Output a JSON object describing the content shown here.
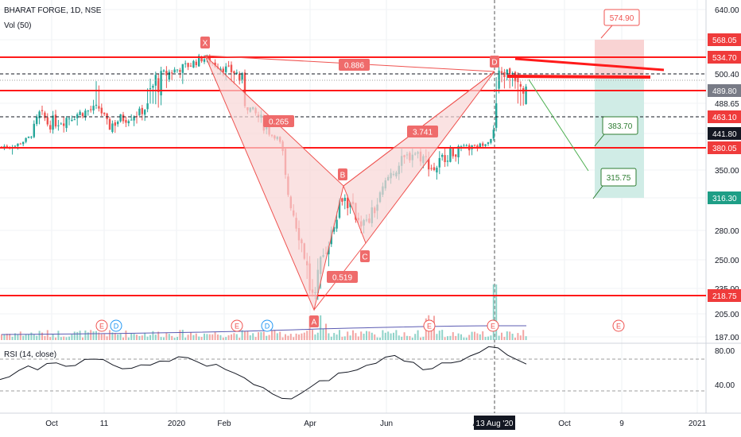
{
  "header": {
    "symbol_line": "BHARAT FORGE, 1D, NSE",
    "volume_label": "Vol (50)",
    "rsi_label": "RSI (14, close)"
  },
  "colors": {
    "up": "#26a69a",
    "down": "#ef5350",
    "level_line": "#ff1a1a",
    "pattern_fill": "#f8d5d5",
    "pattern_stroke": "#ef5350",
    "target_fill": "#d0ece6",
    "stop_fill": "#f9d3d3",
    "green_note": "#2e7d32",
    "red_note": "#ef5350",
    "rsi_line": "#131722"
  },
  "chart_data": {
    "type": "candlestick",
    "title": "BHARAT FORGE, 1D, NSE",
    "price_axis_ticks": [
      640.0,
      568.05,
      534.7,
      500.4,
      489.8,
      488.65,
      463.1,
      441.8,
      380.05,
      350.0,
      316.3,
      280.0,
      250.0,
      235.0,
      218.75,
      205.0,
      187.0
    ],
    "time_axis_labels": [
      "Oct",
      "11",
      "2020",
      "Feb",
      "Apr",
      "Jun",
      "A",
      "13 Aug '20",
      "Oct",
      "9",
      "2021"
    ],
    "horizontal_levels": [
      534.7,
      489.8,
      380.05,
      218.75
    ],
    "dashed_levels": [
      500.4,
      463.1
    ],
    "harmonic_pattern": {
      "points": [
        {
          "label": "X",
          "price": 534.7
        },
        {
          "label": "A",
          "price": 218.75
        },
        {
          "label": "B",
          "price": 350.0
        },
        {
          "label": "C",
          "price": 280.0
        },
        {
          "label": "D",
          "price": 534.7
        }
      ],
      "ratios": [
        "0.886",
        "0.265",
        "0.519",
        "3.741"
      ]
    },
    "trade_targets": [
      "574.90",
      "383.70",
      "315.75"
    ],
    "event_markers": [
      "E",
      "D",
      "E",
      "D",
      "E",
      "E",
      "E"
    ],
    "rsi": {
      "levels": [
        "80.00",
        "40.00"
      ],
      "values": [
        46,
        48,
        58,
        61,
        57,
        66,
        64,
        62,
        63,
        68,
        71,
        69,
        62,
        60,
        58,
        63,
        64,
        66,
        68,
        73,
        70,
        68,
        61,
        63,
        59,
        52,
        48,
        41,
        35,
        30,
        24,
        22,
        31,
        36,
        44,
        46,
        52,
        55,
        58,
        61,
        66,
        72,
        73,
        69,
        65,
        57,
        60,
        64,
        66,
        68,
        72,
        79,
        84,
        82,
        76,
        68,
        64
      ]
    }
  }
}
